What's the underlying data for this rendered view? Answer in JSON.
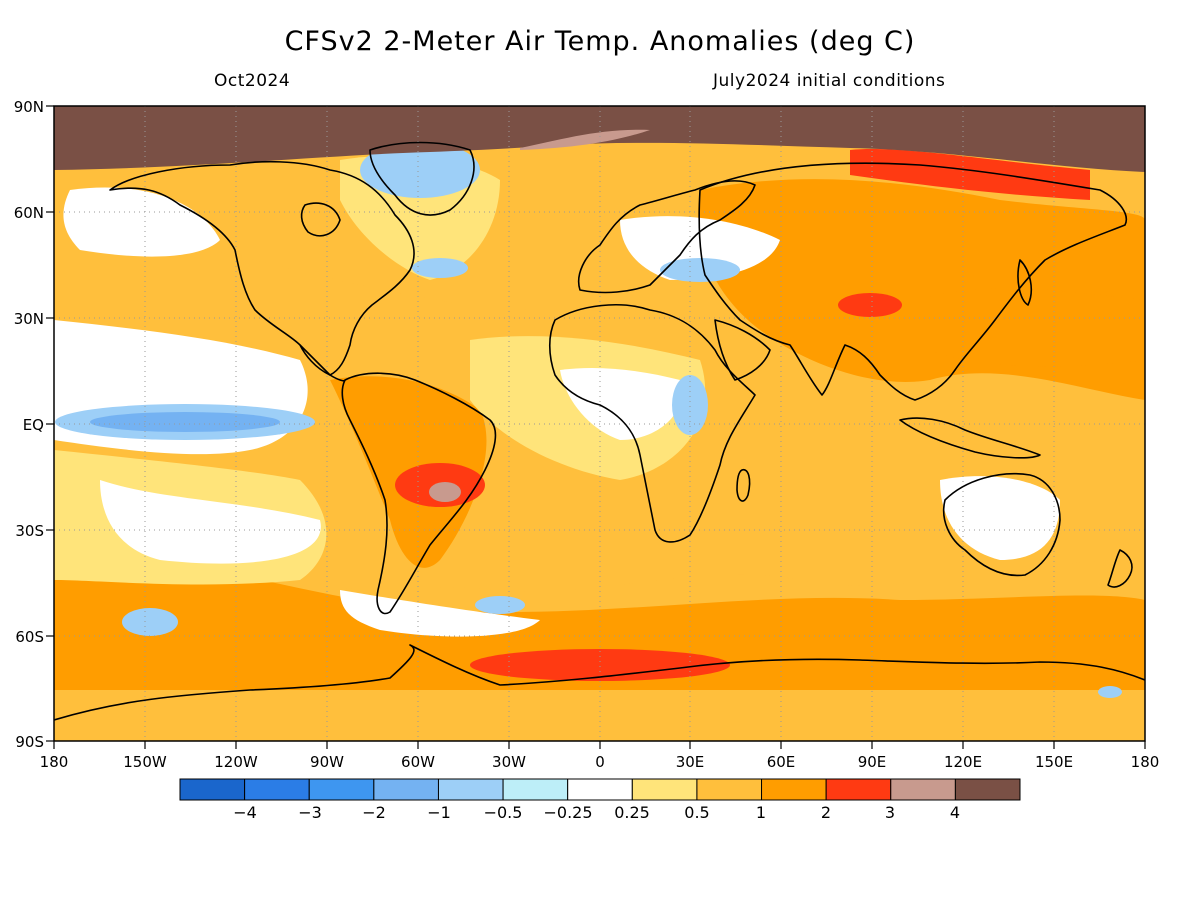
{
  "title": "CFSv2 2-Meter Air Temp. Anomalies (deg C)",
  "valid_month": "Oct2024",
  "init_label": "July2024 initial conditions",
  "map": {
    "projection": "cylindrical equidistant (global)",
    "lon_range": [
      -180,
      180
    ],
    "lat_range": [
      -90,
      90
    ],
    "lat_ticks": [
      "90N",
      "60N",
      "30N",
      "EQ",
      "30S",
      "60S",
      "90S"
    ],
    "lon_ticks": [
      "180",
      "150W",
      "120W",
      "90W",
      "60W",
      "30W",
      "0",
      "30E",
      "60E",
      "90E",
      "120E",
      "150E",
      "180"
    ]
  },
  "colorbar": {
    "colors": [
      "#1a66cc",
      "#2b7de6",
      "#3e96f0",
      "#74b2f2",
      "#9dcff7",
      "#bdeef8",
      "#ffffff",
      "#ffe47a",
      "#ffbf3c",
      "#ff9d00",
      "#ff3a12",
      "#c89a8e",
      "#7a5045"
    ],
    "labels": [
      "−4",
      "−3",
      "−2",
      "−1",
      "−0.5",
      "−0.25",
      "0.25",
      "0.5",
      "1",
      "2",
      "3",
      "4"
    ]
  }
}
